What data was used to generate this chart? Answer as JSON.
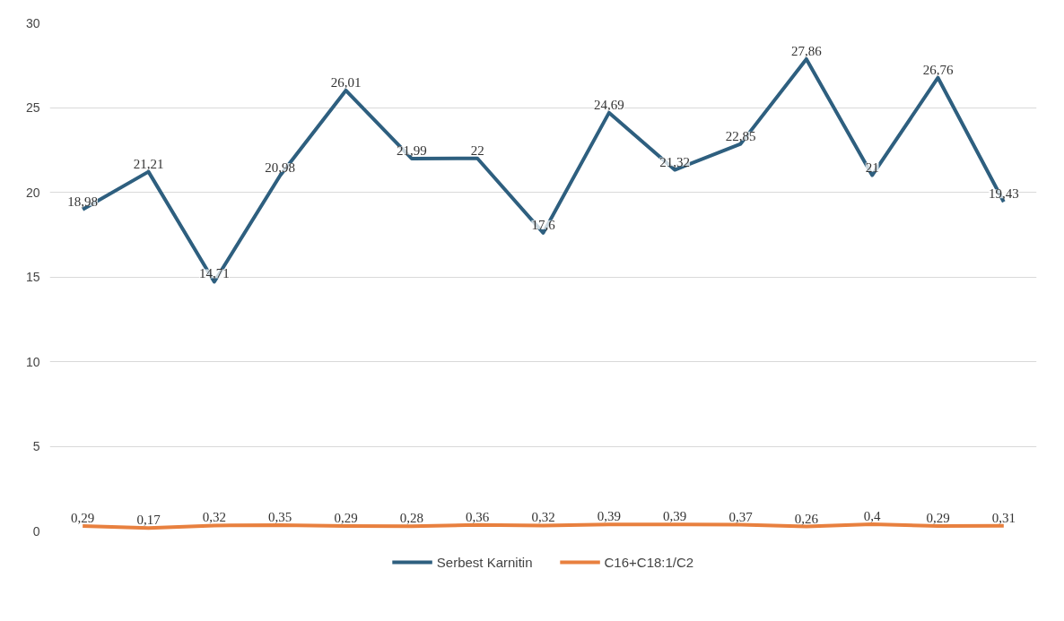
{
  "chart_data": {
    "type": "line",
    "categories": [
      null,
      null,
      null,
      null,
      null,
      null,
      null,
      null,
      null,
      null,
      null,
      null,
      null,
      null,
      null
    ],
    "series": [
      {
        "name": "Serbest Karnitin",
        "color": "#2e5f7f",
        "values": [
          18.98,
          21.21,
          14.71,
          20.98,
          26.01,
          21.99,
          22,
          17.6,
          24.69,
          21.32,
          22.85,
          27.86,
          21,
          26.76,
          19.43
        ],
        "value_labels": [
          "18,98",
          "21,21",
          "14,71",
          "20,98",
          "26,01",
          "21,99",
          "22",
          "17,6",
          "24,69",
          "21,32",
          "22,85",
          "27,86",
          "21",
          "26,76",
          "19,43"
        ]
      },
      {
        "name": "C16+C18:1/C2",
        "color": "#e8803f",
        "values": [
          0.29,
          0.17,
          0.32,
          0.35,
          0.29,
          0.28,
          0.36,
          0.32,
          0.39,
          0.39,
          0.37,
          0.26,
          0.4,
          0.29,
          0.31
        ],
        "value_labels": [
          "0,29",
          "0,17",
          "0,32",
          "0,35",
          "0,29",
          "0,28",
          "0,36",
          "0,32",
          "0,39",
          "0,39",
          "0,37",
          "0,26",
          "0,4",
          "0,29",
          "0,31"
        ]
      }
    ],
    "ylim": [
      0,
      30
    ],
    "yticks": [
      0,
      5,
      10,
      15,
      20,
      25,
      30
    ],
    "grid": "y",
    "legend": "bottom",
    "marker": "none",
    "line_style": "solid",
    "tick_labels": "y"
  }
}
